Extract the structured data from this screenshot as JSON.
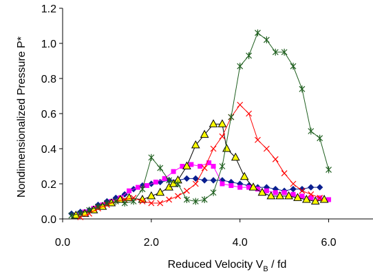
{
  "chart_data": {
    "type": "line",
    "title": "",
    "xlabel_main": "Reduced Velocity V",
    "xlabel_sub": "B",
    "xlabel_tail": " / fd",
    "ylabel": "Nondimensionalized Pressure P*",
    "xlim": [
      0,
      7
    ],
    "ylim": [
      0,
      1.2
    ],
    "x_ticks": [
      0,
      2,
      4,
      6
    ],
    "x_tick_labels": [
      "0.0",
      "2.0",
      "4.0",
      "6.0"
    ],
    "y_ticks": [
      0,
      0.2,
      0.4,
      0.6,
      0.8,
      1.0,
      1.2
    ],
    "y_tick_labels": [
      "0.0",
      "0.2",
      "0.4",
      "0.6",
      "0.8",
      "1.0",
      "1.2"
    ],
    "grid": false,
    "series": [
      {
        "marker": "diamond",
        "color": "#0a1f8f",
        "marker_color": "#0a1f8f",
        "x": [
          0.2,
          0.4,
          0.6,
          0.8,
          1.0,
          1.2,
          1.4,
          1.6,
          1.8,
          2.0,
          2.2,
          2.4,
          2.6,
          2.8,
          3.0,
          3.2,
          3.4,
          3.6,
          3.8,
          4.0,
          4.2,
          4.4,
          4.6,
          4.8,
          5.0,
          5.2,
          5.4,
          5.6,
          5.8
        ],
        "y": [
          0.03,
          0.04,
          0.05,
          0.08,
          0.1,
          0.12,
          0.14,
          0.17,
          0.19,
          0.2,
          0.21,
          0.22,
          0.22,
          0.23,
          0.23,
          0.22,
          0.22,
          0.22,
          0.21,
          0.2,
          0.19,
          0.18,
          0.18,
          0.17,
          0.16,
          0.17,
          0.17,
          0.18,
          0.18
        ]
      },
      {
        "marker": "square",
        "color": "#ff00ff",
        "marker_color": "#ff00ff",
        "x": [
          0.3,
          0.5,
          0.7,
          0.9,
          1.1,
          1.3,
          1.5,
          1.7,
          1.9,
          2.1,
          2.3,
          2.5,
          2.7,
          2.9,
          3.1,
          3.3,
          3.4,
          3.6,
          3.8,
          4.0,
          4.2,
          4.4,
          4.6,
          4.8,
          5.0,
          5.2,
          5.4,
          5.6,
          5.8,
          6.0
        ],
        "y": [
          0.02,
          0.04,
          0.06,
          0.08,
          0.1,
          0.12,
          0.16,
          0.18,
          0.19,
          0.21,
          0.23,
          0.27,
          0.3,
          0.31,
          0.3,
          0.32,
          0.3,
          0.2,
          0.19,
          0.18,
          0.18,
          0.17,
          0.16,
          0.15,
          0.15,
          0.14,
          0.13,
          0.12,
          0.12,
          0.11
        ]
      },
      {
        "marker": "triangle",
        "color": "#000000",
        "marker_color": "#ffff00",
        "x": [
          0.3,
          0.5,
          0.7,
          0.9,
          1.1,
          1.3,
          1.5,
          1.8,
          2.0,
          2.2,
          2.4,
          2.5,
          2.6,
          2.8,
          3.0,
          3.2,
          3.4,
          3.6,
          3.7,
          3.9,
          4.1,
          4.3,
          4.5,
          4.7,
          4.9,
          5.1,
          5.3,
          5.5,
          5.7,
          5.9
        ],
        "y": [
          0.02,
          0.03,
          0.05,
          0.07,
          0.09,
          0.11,
          0.12,
          0.11,
          0.13,
          0.15,
          0.18,
          0.2,
          0.22,
          0.3,
          0.42,
          0.48,
          0.54,
          0.54,
          0.4,
          0.35,
          0.24,
          0.18,
          0.15,
          0.13,
          0.13,
          0.13,
          0.12,
          0.11,
          0.1,
          0.11
        ]
      },
      {
        "marker": "x",
        "color": "#ff0000",
        "marker_color": "#ff0000",
        "x": [
          0.4,
          0.6,
          0.8,
          1.0,
          1.2,
          1.4,
          1.6,
          1.8,
          2.0,
          2.2,
          2.4,
          2.6,
          2.8,
          3.0,
          3.2,
          3.4,
          3.6,
          3.8,
          4.0,
          4.2,
          4.4,
          4.6,
          4.8,
          5.0,
          5.2,
          5.4,
          5.6,
          5.8
        ],
        "y": [
          0.01,
          0.03,
          0.06,
          0.08,
          0.1,
          0.11,
          0.12,
          0.1,
          0.09,
          0.09,
          0.11,
          0.13,
          0.16,
          0.2,
          0.29,
          0.4,
          0.47,
          0.58,
          0.65,
          0.6,
          0.45,
          0.4,
          0.34,
          0.26,
          0.2,
          0.16,
          0.14,
          0.12
        ]
      },
      {
        "marker": "star",
        "color": "#1f5f1f",
        "marker_color": "#1f5f1f",
        "x": [
          0.2,
          0.4,
          0.6,
          0.8,
          1.0,
          1.2,
          1.4,
          1.6,
          1.8,
          2.0,
          2.2,
          2.4,
          2.6,
          2.8,
          3.0,
          3.2,
          3.4,
          3.6,
          3.8,
          4.0,
          4.2,
          4.4,
          4.6,
          4.8,
          5.0,
          5.2,
          5.4,
          5.6,
          5.8,
          6.0
        ],
        "y": [
          0.02,
          0.03,
          0.05,
          0.07,
          0.09,
          0.1,
          0.09,
          0.1,
          0.17,
          0.35,
          0.29,
          0.22,
          0.2,
          0.11,
          0.1,
          0.11,
          0.15,
          0.3,
          0.58,
          0.87,
          0.93,
          1.06,
          1.02,
          0.95,
          0.95,
          0.87,
          0.74,
          0.5,
          0.46,
          0.28
        ]
      }
    ]
  }
}
